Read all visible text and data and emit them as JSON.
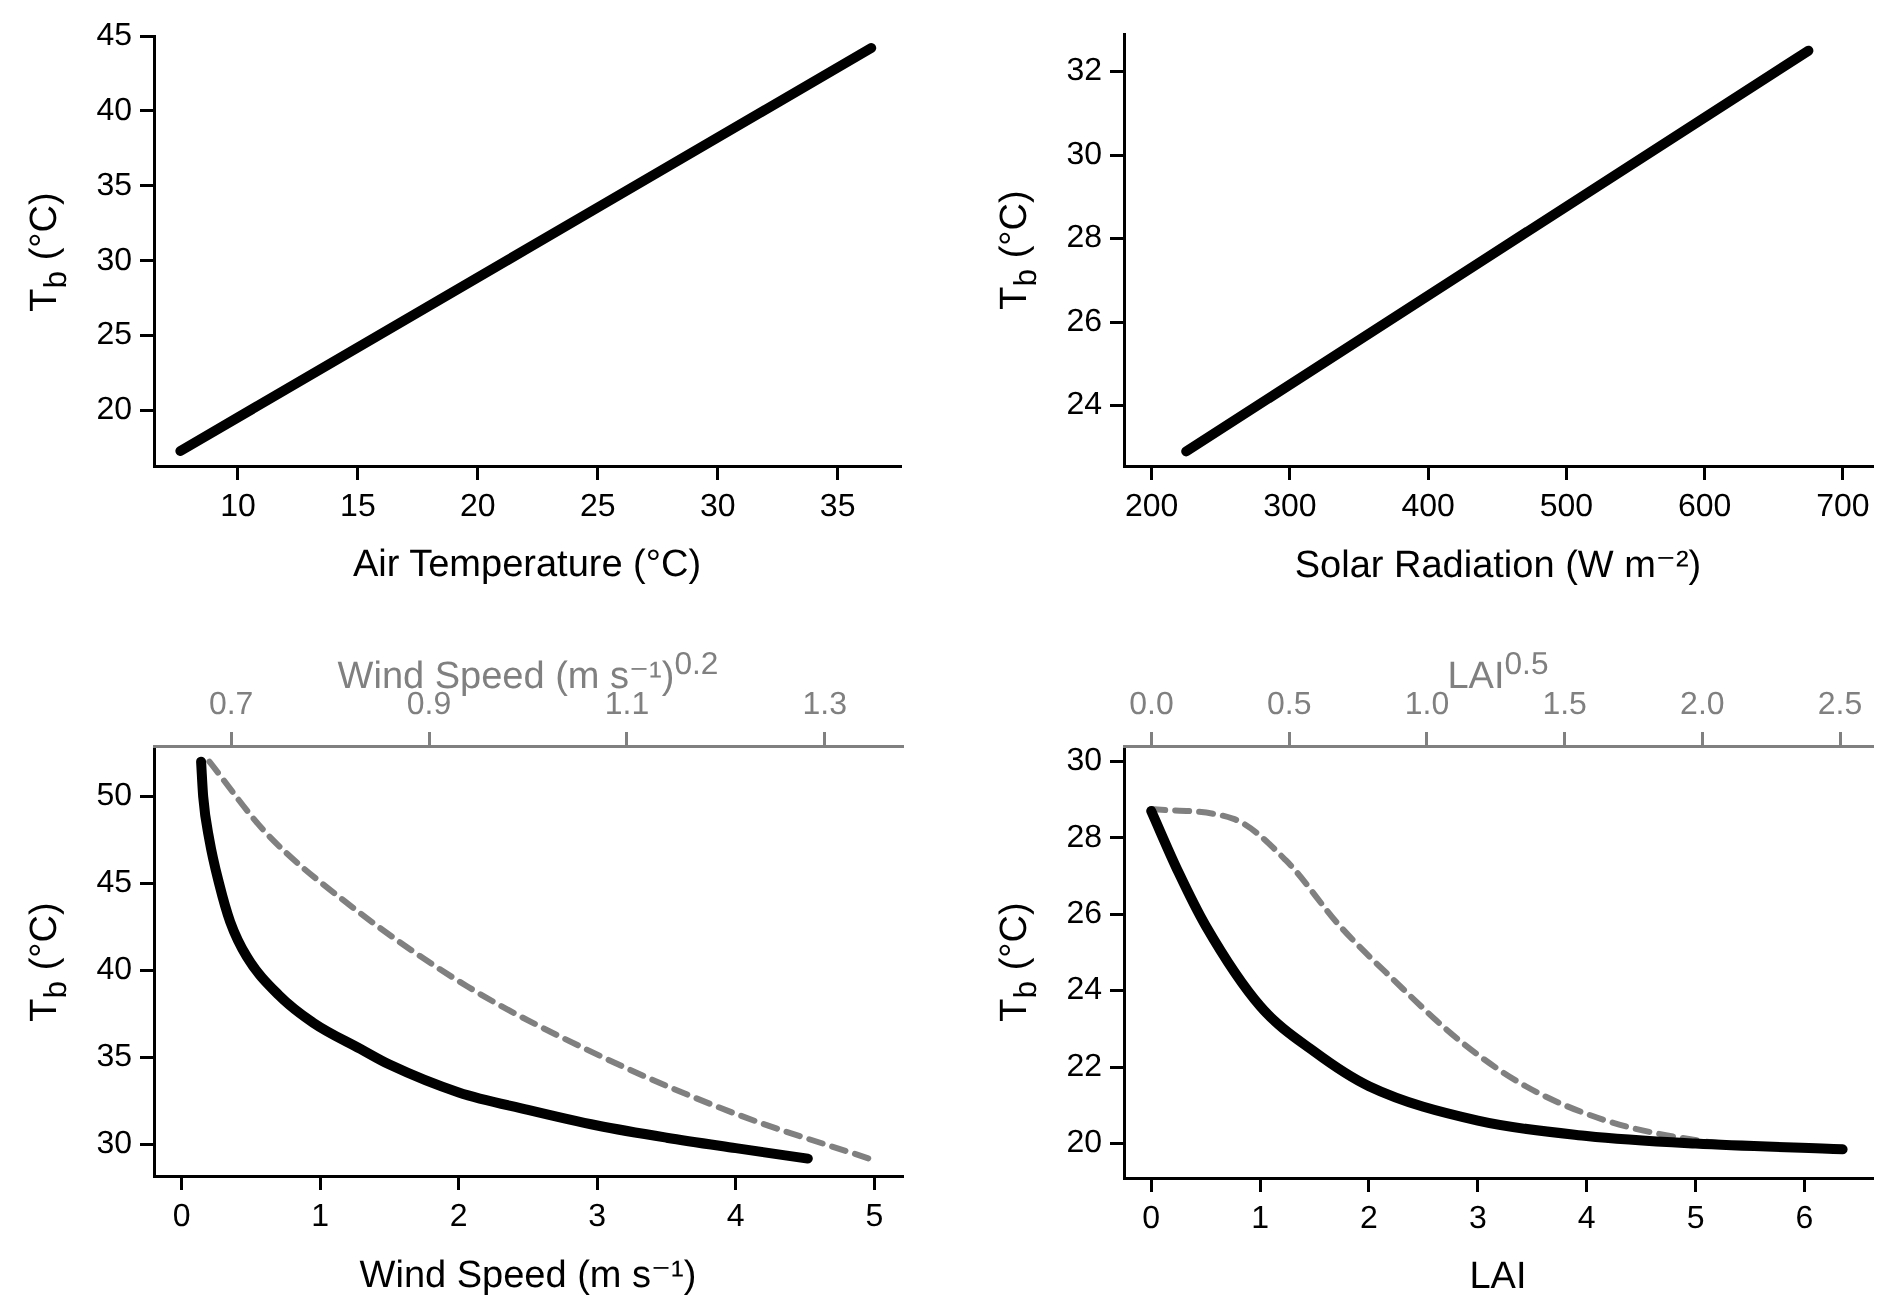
{
  "chart_data": [
    {
      "type": "line",
      "xlabel": "Air Temperature (°C)",
      "ylabel": "T$_{b}$ (°C)",
      "xlim": [
        6.5,
        37.6
      ],
      "ylim": [
        16.3,
        45
      ],
      "xticks": [
        10,
        15,
        20,
        25,
        30,
        35
      ],
      "yticks": [
        20,
        25,
        30,
        35,
        40,
        45
      ],
      "series": [
        {
          "color": "#000000",
          "line_style": "solid",
          "x": [
            7.6,
            36.4
          ],
          "values": [
            17.3,
            44.2
          ]
        }
      ]
    },
    {
      "type": "line",
      "xlabel": "Solar Radiation (W m⁻²)",
      "ylabel": "T$_{b}$ (°C)",
      "xlim": [
        180,
        721
      ],
      "ylim": [
        22.55,
        32.9
      ],
      "xticks": [
        200,
        300,
        400,
        500,
        600,
        700
      ],
      "yticks": [
        24,
        26,
        28,
        30,
        32
      ],
      "series": [
        {
          "color": "#000000",
          "line_style": "solid",
          "x": [
            225,
            675
          ],
          "values": [
            22.9,
            32.5
          ]
        }
      ]
    },
    {
      "type": "line",
      "xlabel": "Wind Speed (m s⁻¹)",
      "ylabel": "T$_{b}$ (°C)",
      "x2label": "Wind Speed (m s⁻¹)$^{0.2}$",
      "xlim": [
        -0.2,
        5.2
      ],
      "ylim": [
        28.2,
        52.9
      ],
      "xticks": [
        0,
        1,
        2,
        3,
        4,
        5
      ],
      "yticks": [
        30,
        35,
        40,
        45,
        50
      ],
      "x2lim": [
        0.622,
        1.378
      ],
      "x2ticks": [
        0.7,
        0.9,
        1.1,
        1.3
      ],
      "series": [
        {
          "color": "#000000",
          "line_style": "solid",
          "x": [
            0.14,
            0.155,
            0.2,
            0.27,
            0.35,
            0.47,
            0.7,
            0.95,
            1.29,
            1.5,
            2,
            2.5,
            3,
            3.5,
            4,
            4.52
          ],
          "values": [
            52,
            50,
            47.5,
            45,
            42.8,
            40.8,
            38.6,
            37,
            35.5,
            34.6,
            33,
            32,
            31.1,
            30.4,
            29.8,
            29.2
          ]
        },
        {
          "color": "#808080",
          "line_style": "dashed",
          "x": [
            0.2,
            0.61,
            1.19,
            2.06,
            3.02,
            3.99,
            5
          ],
          "values": [
            52,
            47.9,
            43.9,
            39.1,
            35.1,
            31.8,
            29.1
          ]
        }
      ]
    },
    {
      "type": "line",
      "xlabel": "LAI",
      "ylabel": "T$_{b}$ (°C)",
      "x2label": "LAI$^{0.5}$",
      "xlim": [
        -0.25,
        6.62
      ],
      "ylim": [
        19.1,
        30.4
      ],
      "xticks": [
        0,
        1,
        2,
        3,
        4,
        5,
        6
      ],
      "yticks": [
        20,
        22,
        24,
        26,
        28,
        30
      ],
      "x2lim": [
        -0.1,
        2.616
      ],
      "x2ticks": [
        {
          "value": 0,
          "label": "0.0"
        },
        0.5,
        {
          "value": 1,
          "label": "1.0"
        },
        1.5,
        {
          "value": 2,
          "label": "2.0"
        },
        2.5
      ],
      "series": [
        {
          "color": "#000000",
          "line_style": "solid",
          "x": [
            0,
            0.25,
            0.5,
            1,
            1.5,
            2,
            3,
            4,
            5,
            6.35
          ],
          "values": [
            28.7,
            27.1,
            25.7,
            23.6,
            22.4,
            21.5,
            20.6,
            20.2,
            20.0,
            19.85
          ]
        },
        {
          "color": "#808080",
          "line_style": "dashed",
          "x": [
            0,
            0.75,
            1.24,
            1.73,
            2.22,
            2.83,
            3.44,
            4.18,
            4.98,
            5.71,
            6.35
          ],
          "values": [
            28.75,
            28.5,
            27.4,
            25.7,
            24.3,
            22.7,
            21.5,
            20.6,
            20.1,
            19.9,
            19.85
          ]
        }
      ]
    }
  ]
}
